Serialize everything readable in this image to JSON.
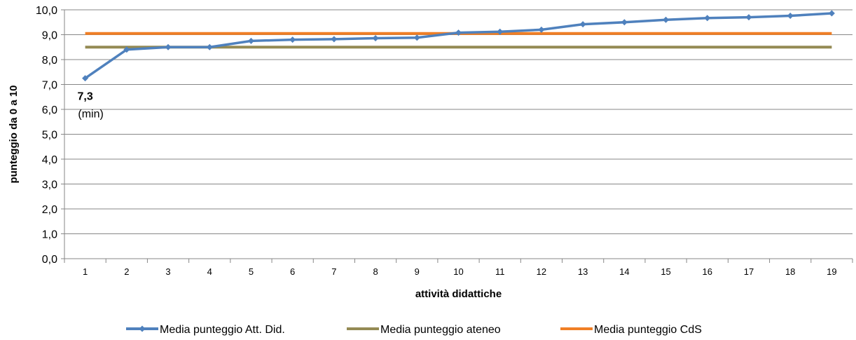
{
  "chart_data": {
    "type": "line",
    "title": "",
    "xlabel": "attività didattiche",
    "ylabel": "punteggio da 0 a 10",
    "categories": [
      "1",
      "2",
      "3",
      "4",
      "5",
      "6",
      "7",
      "8",
      "9",
      "10",
      "11",
      "12",
      "13",
      "14",
      "15",
      "16",
      "17",
      "18",
      "19"
    ],
    "ylim": [
      0,
      10
    ],
    "yticks": [
      "0,0",
      "1,0",
      "2,0",
      "3,0",
      "4,0",
      "5,0",
      "6,0",
      "7,0",
      "8,0",
      "9,0",
      "10,0"
    ],
    "grid": true,
    "legend_position": "bottom",
    "series": [
      {
        "name": "Media punteggio Att. Did.",
        "color": "#4f81bd",
        "marker": "diamond",
        "values": [
          7.25,
          8.4,
          8.5,
          8.5,
          8.75,
          8.8,
          8.82,
          8.86,
          8.88,
          9.08,
          9.12,
          9.2,
          9.42,
          9.5,
          9.6,
          9.67,
          9.7,
          9.76,
          9.86
        ]
      },
      {
        "name": "Media punteggio ateneo",
        "color": "#948a54",
        "marker": "none",
        "values": [
          8.5,
          8.5,
          8.5,
          8.5,
          8.5,
          8.5,
          8.5,
          8.5,
          8.5,
          8.5,
          8.5,
          8.5,
          8.5,
          8.5,
          8.5,
          8.5,
          8.5,
          8.5,
          8.5
        ]
      },
      {
        "name": "Media punteggio CdS",
        "color": "#f07f25",
        "marker": "none",
        "values": [
          9.05,
          9.05,
          9.05,
          9.05,
          9.05,
          9.05,
          9.05,
          9.05,
          9.05,
          9.05,
          9.05,
          9.05,
          9.05,
          9.05,
          9.05,
          9.05,
          9.05,
          9.05,
          9.05
        ]
      }
    ],
    "annotation": {
      "value_label": "7,3",
      "note": "(min)",
      "category": "1"
    }
  }
}
